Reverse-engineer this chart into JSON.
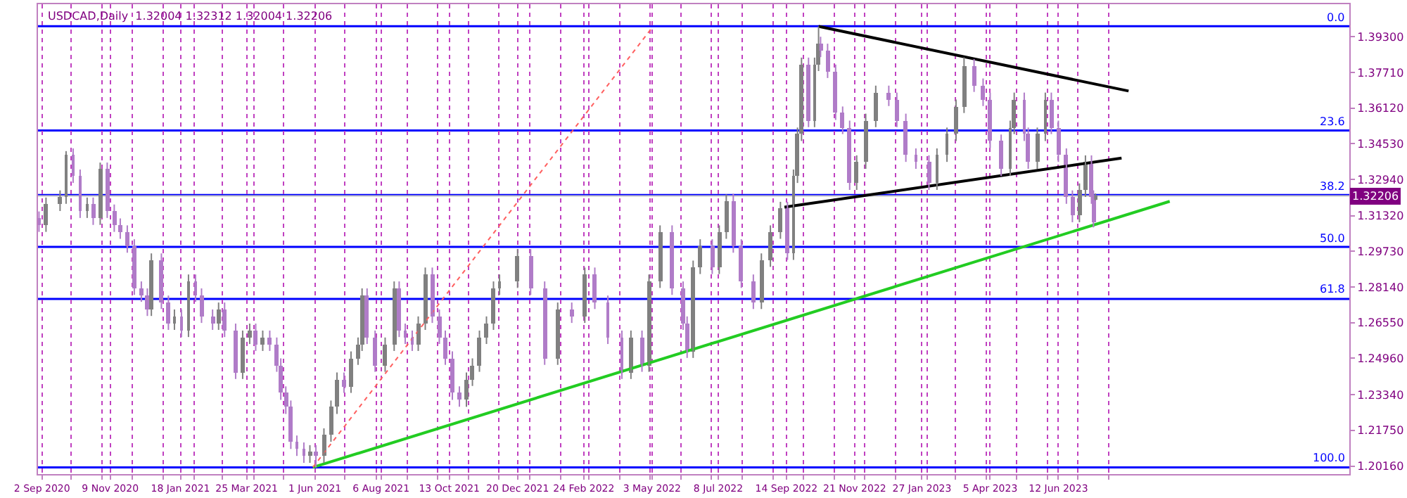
{
  "chart_data": {
    "type": "candlestick",
    "title": "USDCAD,Daily  1.32004 1.32312 1.32004 1.32206",
    "colors": [
      "#b07cc8",
      "#808080",
      "#808080",
      "#808080",
      "#b07cc8",
      "#b07cc8",
      "#808080",
      "#b07cc8",
      "#808080",
      "#b07cc8",
      "#b07cc8",
      "#b07cc8",
      "#b07cc8",
      "#b07cc8",
      "#b07cc8",
      "#b07cc8",
      "#808080",
      "#b07cc8",
      "#b07cc8",
      "#808080",
      "#b07cc8",
      "#808080",
      "#b07cc8",
      "#b07cc8",
      "#b07cc8",
      "#808080",
      "#b07cc8",
      "#b07cc8",
      "#808080",
      "#808080",
      "#b07cc8",
      "#808080",
      "#b07cc8",
      "#b07cc8",
      "#b07cc8",
      "#b07cc8",
      "#b07cc8",
      "#b07cc8",
      "#b07cc8",
      "#808080",
      "#b07cc8",
      "#808080",
      "#808080",
      "#808080",
      "#b07cc8",
      "#808080",
      "#808080",
      "#808080",
      "#b07cc8",
      "#b07cc8",
      "#808080",
      "#808080",
      "#b07cc8",
      "#b07cc8",
      "#b07cc8",
      "#808080",
      "#808080",
      "#b07cc8",
      "#b07cc8",
      "#b07cc8",
      "#b07cc8",
      "#b07cc8",
      "#808080",
      "#808080",
      "#808080",
      "#808080",
      "#808080",
      "#808080",
      "#808080",
      "#b07cc8",
      "#b07cc8",
      "#808080",
      "#b07cc8",
      "#808080",
      "#b07cc8",
      "#b07cc8",
      "#b07cc8",
      "#808080",
      "#b07cc8",
      "#808080",
      "#808080",
      "#b07cc8",
      "#b07cc8",
      "#b07cc8",
      "#808080",
      "#808080",
      "#b07cc8",
      "#808080",
      "#808080",
      "#b07cc8",
      "#b07cc8",
      "#b07cc8",
      "#808080",
      "#808080",
      "#808080",
      "#b07cc8",
      "#808080",
      "#808080",
      "#808080",
      "#b07cc8",
      "#808080",
      "#808080",
      "#b07cc8",
      "#b07cc8",
      "#b07cc8",
      "#b07cc8",
      "#b07cc8",
      "#808080",
      "#808080",
      "#808080",
      "#b07cc8",
      "#b07cc8",
      "#b07cc8",
      "#b07cc8",
      "#b07cc8",
      "#808080",
      "#808080",
      "#808080",
      "#808080",
      "#b07cc8",
      "#b07cc8",
      "#b07cc8",
      "#b07cc8",
      "#808080",
      "#808080",
      "#b07cc8",
      "#b07cc8",
      "#808080",
      "#808080",
      "#b07cc8",
      "#b07cc8",
      "#b07cc8",
      "#b07cc8",
      "#808080",
      "#808080",
      "#b07cc8",
      "#b07cc8",
      "#808080"
    ],
    "x": [
      "2020-08-30",
      "2020-09-06",
      "2020-09-20",
      "2020-09-26",
      "2020-10-03",
      "2020-10-10",
      "2020-10-17",
      "2020-10-23",
      "2020-10-30",
      "2020-11-06",
      "2020-11-13",
      "2020-11-19",
      "2020-11-26",
      "2020-12-03",
      "2020-12-10",
      "2020-12-16",
      "2020-12-20",
      "2020-12-30",
      "2021-01-06",
      "2021-01-12",
      "2021-01-19",
      "2021-01-26",
      "2021-02-02",
      "2021-02-08",
      "2021-02-19",
      "2021-02-25",
      "2021-03-03",
      "2021-03-14",
      "2021-03-21",
      "2021-03-28",
      "2021-04-03",
      "2021-04-10",
      "2021-04-17",
      "2021-04-24",
      "2021-04-28",
      "2021-05-03",
      "2021-05-08",
      "2021-05-14",
      "2021-05-21",
      "2021-05-27",
      "2021-06-02",
      "2021-06-10",
      "2021-06-17",
      "2021-06-23",
      "2021-06-30",
      "2021-07-07",
      "2021-07-14",
      "2021-07-18",
      "2021-07-23",
      "2021-07-31",
      "2021-08-10",
      "2021-08-19",
      "2021-08-24",
      "2021-08-30",
      "2021-09-06",
      "2021-09-12",
      "2021-09-19",
      "2021-09-26",
      "2021-10-03",
      "2021-10-09",
      "2021-10-16",
      "2021-10-23",
      "2021-10-30",
      "2021-11-05",
      "2021-11-12",
      "2021-11-19",
      "2021-11-26",
      "2021-12-02",
      "2021-12-20",
      "2022-01-02",
      "2022-01-16",
      "2022-01-29",
      "2022-02-12",
      "2022-02-25",
      "2022-03-07",
      "2022-03-20",
      "2022-04-03",
      "2022-04-12",
      "2022-04-23",
      "2022-04-30",
      "2022-05-11",
      "2022-05-23",
      "2022-06-03",
      "2022-06-07",
      "2022-06-13",
      "2022-06-20",
      "2022-07-02",
      "2022-07-09",
      "2022-07-16",
      "2022-07-23",
      "2022-07-31",
      "2022-08-12",
      "2022-08-20",
      "2022-08-29",
      "2022-09-08",
      "2022-09-15",
      "2022-09-21",
      "2022-09-25",
      "2022-09-29",
      "2022-10-06",
      "2022-10-12",
      "2022-10-16",
      "2022-10-18",
      "2022-10-25",
      "2022-11-02",
      "2022-11-09",
      "2022-11-16",
      "2022-11-23",
      "2022-12-02",
      "2022-12-12",
      "2022-12-25",
      "2023-01-02",
      "2023-01-11",
      "2023-01-21",
      "2023-02-03",
      "2023-02-11",
      "2023-02-21",
      "2023-03-02",
      "2023-03-10",
      "2023-03-20",
      "2023-03-29",
      "2023-04-05",
      "2023-04-16",
      "2023-04-25",
      "2023-04-29",
      "2023-05-09",
      "2023-05-13",
      "2023-05-22",
      "2023-05-30",
      "2023-06-05",
      "2023-06-12",
      "2023-06-20",
      "2023-06-26",
      "2023-07-03",
      "2023-07-09",
      "2023-07-15",
      "2023-07-17",
      "2023-07-19"
    ],
    "ohlc": [
      [
        1.3121,
        1.3151,
        1.306,
        1.309
      ],
      [
        1.309,
        1.3213,
        1.306,
        1.3183
      ],
      [
        1.3183,
        1.3245,
        1.3153,
        1.3215
      ],
      [
        1.3215,
        1.342,
        1.3185,
        1.3402
      ],
      [
        1.3402,
        1.3432,
        1.3278,
        1.3308
      ],
      [
        1.3308,
        1.3338,
        1.3122,
        1.3152
      ],
      [
        1.3152,
        1.3213,
        1.3122,
        1.3183
      ],
      [
        1.3183,
        1.3213,
        1.3091,
        1.3121
      ],
      [
        1.3121,
        1.3369,
        1.3091,
        1.3339
      ],
      [
        1.3339,
        1.3369,
        1.3122,
        1.3152
      ],
      [
        1.3152,
        1.3182,
        1.306,
        1.309
      ],
      [
        1.309,
        1.312,
        1.3029,
        1.3059
      ],
      [
        1.3059,
        1.3089,
        1.2967,
        1.2997
      ],
      [
        1.2997,
        1.3027,
        1.2779,
        1.2809
      ],
      [
        1.2809,
        1.2839,
        1.2748,
        1.2778
      ],
      [
        1.2778,
        1.2808,
        1.2685,
        1.2715
      ],
      [
        1.2715,
        1.2964,
        1.2685,
        1.2934
      ],
      [
        1.2934,
        1.2964,
        1.2716,
        1.2746
      ],
      [
        1.2746,
        1.2776,
        1.2623,
        1.2653
      ],
      [
        1.2653,
        1.2714,
        1.2623,
        1.2684
      ],
      [
        1.2684,
        1.2714,
        1.2591,
        1.2621
      ],
      [
        1.2621,
        1.287,
        1.2591,
        1.284
      ],
      [
        1.284,
        1.287,
        1.2748,
        1.2778
      ],
      [
        1.2778,
        1.2808,
        1.2654,
        1.2684
      ],
      [
        1.2684,
        1.2714,
        1.2623,
        1.2653
      ],
      [
        1.2653,
        1.2745,
        1.2623,
        1.2715
      ],
      [
        1.2715,
        1.2745,
        1.2591,
        1.2621
      ],
      [
        1.2621,
        1.2651,
        1.2404,
        1.2434
      ],
      [
        1.2434,
        1.262,
        1.2404,
        1.259
      ],
      [
        1.259,
        1.2651,
        1.256,
        1.2621
      ],
      [
        1.2621,
        1.2651,
        1.2529,
        1.2559
      ],
      [
        1.2559,
        1.262,
        1.2529,
        1.259
      ],
      [
        1.259,
        1.262,
        1.2529,
        1.2559
      ],
      [
        1.2559,
        1.2589,
        1.2436,
        1.2466
      ],
      [
        1.2466,
        1.2496,
        1.2311,
        1.2341
      ],
      [
        1.2341,
        1.2371,
        1.2248,
        1.2278
      ],
      [
        1.2278,
        1.2308,
        1.2092,
        1.2122
      ],
      [
        1.2122,
        1.2152,
        1.2061,
        1.2091
      ],
      [
        1.2091,
        1.2121,
        1.203,
        1.206
      ],
      [
        1.206,
        1.2109,
        1.203,
        1.2079
      ],
      [
        1.2079,
        1.2109,
        1.201,
        1.206
      ],
      [
        1.206,
        1.2184,
        1.203,
        1.2154
      ],
      [
        1.2154,
        1.2308,
        1.2124,
        1.2278
      ],
      [
        1.2278,
        1.2433,
        1.2248,
        1.2403
      ],
      [
        1.2403,
        1.2433,
        1.2342,
        1.2372
      ],
      [
        1.2372,
        1.2527,
        1.2342,
        1.2497
      ],
      [
        1.2497,
        1.2589,
        1.2467,
        1.2559
      ],
      [
        1.2559,
        1.2808,
        1.2529,
        1.2778
      ],
      [
        1.2778,
        1.2808,
        1.256,
        1.259
      ],
      [
        1.259,
        1.262,
        1.2436,
        1.2466
      ],
      [
        1.2466,
        1.2589,
        1.2436,
        1.2559
      ],
      [
        1.2559,
        1.2839,
        1.2529,
        1.2809
      ],
      [
        1.2809,
        1.2839,
        1.2591,
        1.2621
      ],
      [
        1.2621,
        1.2651,
        1.256,
        1.259
      ],
      [
        1.259,
        1.262,
        1.2529,
        1.2559
      ],
      [
        1.2559,
        1.2683,
        1.2529,
        1.2653
      ],
      [
        1.2653,
        1.2901,
        1.2623,
        1.2871
      ],
      [
        1.2871,
        1.2901,
        1.2654,
        1.2684
      ],
      [
        1.2684,
        1.2714,
        1.256,
        1.259
      ],
      [
        1.259,
        1.262,
        1.2467,
        1.2497
      ],
      [
        1.2497,
        1.2527,
        1.2311,
        1.2341
      ],
      [
        1.2341,
        1.2371,
        1.228,
        1.231
      ],
      [
        1.231,
        1.2433,
        1.228,
        1.2403
      ],
      [
        1.2403,
        1.2496,
        1.2373,
        1.2466
      ],
      [
        1.2466,
        1.262,
        1.2436,
        1.259
      ],
      [
        1.259,
        1.2683,
        1.256,
        1.2653
      ],
      [
        1.2653,
        1.2839,
        1.2623,
        1.2809
      ],
      [
        1.2809,
        1.287,
        1.2779,
        1.284
      ],
      [
        1.284,
        1.2983,
        1.281,
        1.2953
      ],
      [
        1.2953,
        1.2983,
        1.2779,
        1.2809
      ],
      [
        1.2809,
        1.2839,
        1.2467,
        1.2497
      ],
      [
        1.2497,
        1.2745,
        1.2467,
        1.2715
      ],
      [
        1.2715,
        1.2745,
        1.2654,
        1.2684
      ],
      [
        1.2684,
        1.2901,
        1.2654,
        1.2871
      ],
      [
        1.2871,
        1.2901,
        1.2716,
        1.2746
      ],
      [
        1.2746,
        1.2776,
        1.256,
        1.259
      ],
      [
        1.259,
        1.262,
        1.2404,
        1.2434
      ],
      [
        1.2434,
        1.262,
        1.2404,
        1.259
      ],
      [
        1.259,
        1.262,
        1.2436,
        1.2466
      ],
      [
        1.2466,
        1.287,
        1.2436,
        1.284
      ],
      [
        1.284,
        1.3089,
        1.281,
        1.3059
      ],
      [
        1.3059,
        1.3089,
        1.2779,
        1.2809
      ],
      [
        1.2809,
        1.2839,
        1.2623,
        1.2653
      ],
      [
        1.2653,
        1.2683,
        1.2498,
        1.2528
      ],
      [
        1.2528,
        1.2932,
        1.2498,
        1.2902
      ],
      [
        1.2902,
        1.3027,
        1.2872,
        1.2997
      ],
      [
        1.2997,
        1.3027,
        1.2872,
        1.2902
      ],
      [
        1.2902,
        1.3089,
        1.2872,
        1.3059
      ],
      [
        1.3059,
        1.3227,
        1.3029,
        1.32
      ],
      [
        1.32,
        1.323,
        1.2967,
        1.2997
      ],
      [
        1.2997,
        1.3027,
        1.281,
        1.284
      ],
      [
        1.284,
        1.287,
        1.2716,
        1.2746
      ],
      [
        1.2746,
        1.2964,
        1.2716,
        1.2934
      ],
      [
        1.2934,
        1.3089,
        1.2904,
        1.3059
      ],
      [
        1.3059,
        1.3194,
        1.3029,
        1.3164
      ],
      [
        1.3164,
        1.3194,
        1.2935,
        1.2965
      ],
      [
        1.2965,
        1.3338,
        1.2935,
        1.3308
      ],
      [
        1.3308,
        1.3525,
        1.3278,
        1.3495
      ],
      [
        1.3495,
        1.3837,
        1.3465,
        1.3807
      ],
      [
        1.3807,
        1.3837,
        1.3527,
        1.3557
      ],
      [
        1.3557,
        1.3837,
        1.3527,
        1.3807
      ],
      [
        1.3807,
        1.3976,
        1.3777,
        1.39
      ],
      [
        1.39,
        1.393,
        1.3839,
        1.3869
      ],
      [
        1.3869,
        1.3899,
        1.3746,
        1.3776
      ],
      [
        1.3776,
        1.3806,
        1.3559,
        1.3589
      ],
      [
        1.3589,
        1.3619,
        1.3496,
        1.3526
      ],
      [
        1.3526,
        1.3556,
        1.3247,
        1.3277
      ],
      [
        1.3277,
        1.3401,
        1.3247,
        1.3371
      ],
      [
        1.3371,
        1.3587,
        1.3341,
        1.3557
      ],
      [
        1.3557,
        1.3712,
        1.3527,
        1.3682
      ],
      [
        1.3682,
        1.3712,
        1.3621,
        1.3651
      ],
      [
        1.3651,
        1.3681,
        1.3527,
        1.3557
      ],
      [
        1.3557,
        1.3587,
        1.3372,
        1.3402
      ],
      [
        1.3402,
        1.3432,
        1.3341,
        1.3371
      ],
      [
        1.3371,
        1.3401,
        1.3247,
        1.3277
      ],
      [
        1.3277,
        1.3432,
        1.3247,
        1.3402
      ],
      [
        1.3402,
        1.3525,
        1.3372,
        1.3495
      ],
      [
        1.3495,
        1.365,
        1.3465,
        1.362
      ],
      [
        1.362,
        1.3838,
        1.359,
        1.38
      ],
      [
        1.38,
        1.383,
        1.3684,
        1.3714
      ],
      [
        1.3714,
        1.3744,
        1.3621,
        1.3651
      ],
      [
        1.3651,
        1.3681,
        1.3434,
        1.3464
      ],
      [
        1.3464,
        1.3494,
        1.3309,
        1.3339
      ],
      [
        1.3339,
        1.3556,
        1.3309,
        1.3526
      ],
      [
        1.3526,
        1.3681,
        1.3496,
        1.3651
      ],
      [
        1.3651,
        1.3681,
        1.3465,
        1.3495
      ],
      [
        1.3495,
        1.3525,
        1.3341,
        1.3371
      ],
      [
        1.3371,
        1.3525,
        1.3341,
        1.3495
      ],
      [
        1.3495,
        1.3681,
        1.3465,
        1.3651
      ],
      [
        1.3651,
        1.3681,
        1.3496,
        1.3526
      ],
      [
        1.3526,
        1.3556,
        1.3372,
        1.3402
      ],
      [
        1.3402,
        1.3432,
        1.3185,
        1.3215
      ],
      [
        1.3215,
        1.3245,
        1.3103,
        1.3133
      ],
      [
        1.3133,
        1.3276,
        1.3103,
        1.3246
      ],
      [
        1.3246,
        1.3401,
        1.3216,
        1.3371
      ],
      [
        1.3371,
        1.3401,
        1.3185,
        1.3215
      ],
      [
        1.3215,
        1.3245,
        1.308,
        1.3102
      ],
      [
        1.32004,
        1.32312,
        1.32004,
        1.32206
      ]
    ],
    "series": [
      {
        "type": "line",
        "color": "#000000",
        "x": [
          "2022-10-16",
          "2023-08-21"
        ],
        "values": [
          1.3976,
          1.3688
        ]
      },
      {
        "type": "line",
        "color": "#000000",
        "x": [
          "2022-09-12",
          "2023-08-14"
        ],
        "values": [
          1.317,
          1.3389
        ]
      },
      {
        "type": "line",
        "color": "#22cc22",
        "x": [
          "2021-05-30",
          "2023-10-01"
        ],
        "values": [
          1.201,
          1.3196
        ]
      },
      {
        "type": "line",
        "color": "#ff6060",
        "line_style": "dotted",
        "x": [
          "2021-05-30",
          "2022-05-04"
        ],
        "values": [
          1.201,
          1.3976
        ]
      }
    ],
    "ref_lines": [
      {
        "axis": "y",
        "value": 1.3977,
        "color": "#0000ff"
      },
      {
        "axis": "y",
        "value": 1.3512,
        "color": "#0000ff"
      },
      {
        "axis": "y",
        "value": 1.3224,
        "color": "#0000ff"
      },
      {
        "axis": "y",
        "value": 1.2993,
        "color": "#0000ff"
      },
      {
        "axis": "y",
        "value": 1.2761,
        "color": "#0000ff"
      },
      {
        "axis": "y",
        "value": 1.201,
        "color": "#0000ff"
      },
      {
        "axis": "y",
        "value": 1.32206,
        "label": "1.32206",
        "color": "#c8c8c8"
      }
    ],
    "annotations": [
      {
        "text": "0.0",
        "x": "2024-03-26",
        "y": 1.3977
      },
      {
        "text": "23.6",
        "x": "2024-03-26",
        "y": 1.3512
      },
      {
        "text": "38.2",
        "x": "2024-03-26",
        "y": 1.3224
      },
      {
        "text": "50.0",
        "x": "2024-03-26",
        "y": 1.2993
      },
      {
        "text": "61.8",
        "x": "2024-03-26",
        "y": 1.2761
      },
      {
        "text": "100.0",
        "x": "2024-03-26",
        "y": 1.201
      }
    ],
    "xlim": [
      "2020-08-29",
      "2024-03-28"
    ],
    "xticks": [
      {
        "value": "2020-09-02",
        "label": "2 Sep 2020"
      },
      {
        "value": "2020-10-01",
        "label": null
      },
      {
        "value": "2020-11-01",
        "label": null
      },
      {
        "value": "2020-11-09",
        "label": "9 Nov 2020"
      },
      {
        "value": "2020-12-01",
        "label": null
      },
      {
        "value": "2021-01-01",
        "label": null
      },
      {
        "value": "2021-01-18",
        "label": "18 Jan 2021"
      },
      {
        "value": "2021-02-01",
        "label": null
      },
      {
        "value": "2021-03-01",
        "label": null
      },
      {
        "value": "2021-03-25",
        "label": "25 Mar 2021"
      },
      {
        "value": "2021-04-01",
        "label": null
      },
      {
        "value": "2021-05-01",
        "label": null
      },
      {
        "value": "2021-06-01",
        "label": "1 Jun 2021"
      },
      {
        "value": "2021-07-01",
        "label": null
      },
      {
        "value": "2021-08-01",
        "label": null
      },
      {
        "value": "2021-08-06",
        "label": "6 Aug 2021"
      },
      {
        "value": "2021-09-01",
        "label": null
      },
      {
        "value": "2021-10-01",
        "label": null
      },
      {
        "value": "2021-10-13",
        "label": "13 Oct 2021"
      },
      {
        "value": "2021-11-01",
        "label": null
      },
      {
        "value": "2021-12-01",
        "label": null
      },
      {
        "value": "2021-12-20",
        "label": "20 Dec 2021"
      },
      {
        "value": "2022-01-01",
        "label": null
      },
      {
        "value": "2022-02-01",
        "label": null
      },
      {
        "value": "2022-02-24",
        "label": "24 Feb 2022"
      },
      {
        "value": "2022-03-01",
        "label": null
      },
      {
        "value": "2022-04-01",
        "label": null
      },
      {
        "value": "2022-05-01",
        "label": null
      },
      {
        "value": "2022-05-03",
        "label": "3 May 2022"
      },
      {
        "value": "2022-06-01",
        "label": null
      },
      {
        "value": "2022-07-01",
        "label": null
      },
      {
        "value": "2022-07-08",
        "label": "8 Jul 2022"
      },
      {
        "value": "2022-08-01",
        "label": null
      },
      {
        "value": "2022-09-01",
        "label": null
      },
      {
        "value": "2022-09-14",
        "label": "14 Sep 2022"
      },
      {
        "value": "2022-10-01",
        "label": null
      },
      {
        "value": "2022-11-01",
        "label": null
      },
      {
        "value": "2022-11-21",
        "label": "21 Nov 2022"
      },
      {
        "value": "2022-12-01",
        "label": null
      },
      {
        "value": "2023-01-01",
        "label": null
      },
      {
        "value": "2023-01-27",
        "label": "27 Jan 2023"
      },
      {
        "value": "2023-02-01",
        "label": null
      },
      {
        "value": "2023-03-01",
        "label": null
      },
      {
        "value": "2023-04-01",
        "label": null
      },
      {
        "value": "2023-04-05",
        "label": "5 Apr 2023"
      },
      {
        "value": "2023-05-01",
        "label": null
      },
      {
        "value": "2023-06-01",
        "label": null
      },
      {
        "value": "2023-06-12",
        "label": "12 Jun 2023"
      },
      {
        "value": "2023-07-01",
        "label": null
      },
      {
        "value": "2023-08-01",
        "label": null
      }
    ],
    "ylim": [
      1.198,
      1.4075
    ],
    "yticks": [
      {
        "value": 1.393,
        "label": "1.39300"
      },
      {
        "value": 1.3771,
        "label": "1.37710"
      },
      {
        "value": 1.3612,
        "label": "1.36120"
      },
      {
        "value": 1.3453,
        "label": "1.34530"
      },
      {
        "value": 1.3294,
        "label": "1.32940"
      },
      {
        "value": 1.3132,
        "label": "1.31320"
      },
      {
        "value": 1.2973,
        "label": "1.29730"
      },
      {
        "value": 1.2814,
        "label": "1.28140"
      },
      {
        "value": 1.2655,
        "label": "1.26550"
      },
      {
        "value": 1.2496,
        "label": "1.24960"
      },
      {
        "value": 1.2334,
        "label": "1.23340"
      },
      {
        "value": 1.2175,
        "label": "1.21750"
      },
      {
        "value": 1.2016,
        "label": "1.20160"
      }
    ],
    "grid": "x"
  }
}
